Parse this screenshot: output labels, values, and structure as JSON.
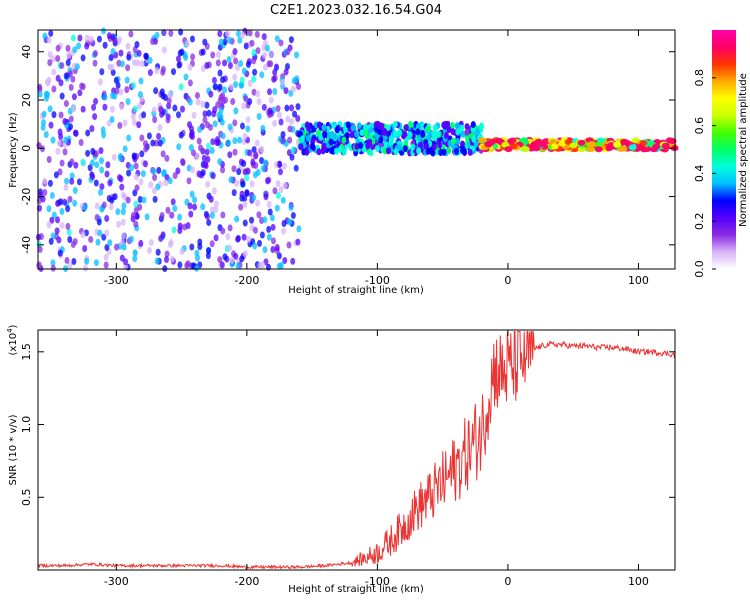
{
  "title": "C2E1.2023.032.16.54.G04",
  "colorbar": {
    "label": "Normalized spectral amplitude",
    "range": [
      0,
      1
    ],
    "ticks": [
      "0.0",
      "0.2",
      "0.4",
      "0.6",
      "0.8"
    ],
    "tick_values": [
      0,
      0.2,
      0.4,
      0.6,
      0.8
    ],
    "colors": [
      "#ffffff",
      "#d8b4f8",
      "#8a2be2",
      "#5500ff",
      "#0000ff",
      "#00bfff",
      "#00ffdd",
      "#00ff66",
      "#44ff00",
      "#ccff00",
      "#ffff00",
      "#ffaa00",
      "#ff3300",
      "#ff0066",
      "#ff00aa"
    ]
  },
  "chart_data": [
    {
      "type": "heatmap",
      "xlabel": "Height of straight line (km)",
      "ylabel": "Frequency (Hz)",
      "xlim": [
        -360,
        128
      ],
      "ylim": [
        -50,
        49
      ],
      "xticks": [
        -300,
        -200,
        -100,
        0,
        100
      ],
      "xtick_labels": [
        "-300",
        "-200",
        "-100",
        "0",
        "100"
      ],
      "yticks": [
        -40,
        -20,
        0,
        20,
        40
      ],
      "ytick_labels": [
        "-40",
        "-20",
        "0",
        "20",
        "40"
      ],
      "features": [
        {
          "x_range": [
            -360,
            -160
          ],
          "description_values": {
            "freq_range": [
              -50,
              49
            ],
            "amplitude": 0.1
          }
        },
        {
          "x_range": [
            -160,
            -20
          ],
          "description_values": {
            "freq_center": 4,
            "freq_halfwidth": 6,
            "amplitude": 0.35
          }
        },
        {
          "x_range": [
            -20,
            128
          ],
          "description_values": {
            "freq_center": 1.5,
            "freq_halfwidth": 2,
            "amplitude": 0.8
          }
        }
      ]
    },
    {
      "type": "line",
      "xlabel": "Height of straight line (km)",
      "ylabel": "SNR (10 * v/v)",
      "yscale_label": "(x10",
      "yscale_exp": "4",
      "yscale_close": ")",
      "xlim": [
        -360,
        128
      ],
      "ylim": [
        0,
        1.65
      ],
      "xticks": [
        -300,
        -200,
        -100,
        0,
        100
      ],
      "xtick_labels": [
        "-300",
        "-200",
        "-100",
        "0",
        "100"
      ],
      "yticks": [
        0.5,
        1.0,
        1.5
      ],
      "ytick_labels": [
        "0.5",
        "1.0",
        "1.5"
      ],
      "color": "#ee3333",
      "series": [
        {
          "x": [
            -360,
            -340,
            -320,
            -300,
            -280,
            -260,
            -240,
            -220,
            -200,
            -180,
            -160,
            -140,
            -120,
            -110,
            -100,
            -90,
            -80,
            -70,
            -60,
            -50,
            -40,
            -30,
            -20,
            -15,
            -10,
            -5,
            0,
            10,
            20,
            30,
            40,
            50,
            60,
            70,
            80,
            90,
            100,
            110,
            120,
            128
          ],
          "values": [
            0.03,
            0.03,
            0.04,
            0.03,
            0.03,
            0.03,
            0.03,
            0.03,
            0.02,
            0.02,
            0.02,
            0.03,
            0.05,
            0.08,
            0.12,
            0.2,
            0.3,
            0.42,
            0.5,
            0.6,
            0.7,
            0.82,
            0.95,
            1.2,
            1.4,
            1.35,
            1.38,
            1.45,
            1.52,
            1.55,
            1.55,
            1.54,
            1.54,
            1.53,
            1.53,
            1.52,
            1.5,
            1.5,
            1.49,
            1.48
          ]
        }
      ]
    }
  ]
}
